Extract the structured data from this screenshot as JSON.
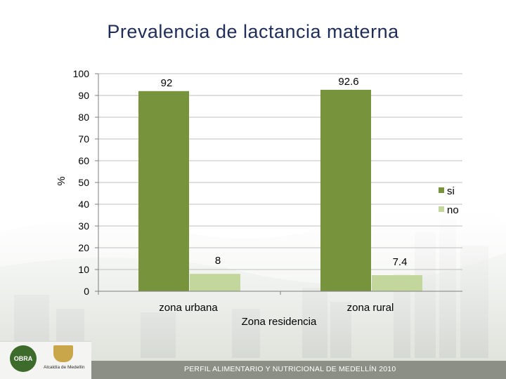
{
  "slide": {
    "title": "Prevalencia de lactancia materna",
    "footer_text": "PERFIL ALIMENTARIO Y NUTRICIONAL DE MEDELLÍN 2010",
    "logo_obra_text": "OBRA",
    "logo_city_text": "Alcaldía de Medellín"
  },
  "chart_data": {
    "type": "bar",
    "title": "Prevalencia de lactancia materna",
    "xlabel": "Zona residencia",
    "ylabel": "%",
    "categories": [
      "zona urbana",
      "zona rural"
    ],
    "series": [
      {
        "name": "si",
        "values": [
          92,
          92.6
        ],
        "labels": [
          "92",
          "92.6"
        ],
        "color": "#77933c"
      },
      {
        "name": "no",
        "values": [
          8,
          7.4
        ],
        "labels": [
          "8",
          "7.4"
        ],
        "color": "#c3d69b"
      }
    ],
    "ylim": [
      0,
      100
    ],
    "yticks": [
      0,
      10,
      20,
      30,
      40,
      50,
      60,
      70,
      80,
      90,
      100
    ],
    "grid": true,
    "legend_position": "right"
  },
  "colors": {
    "title": "#1f2d5a",
    "gridline": "#bfbfbf",
    "text": "#000000"
  }
}
